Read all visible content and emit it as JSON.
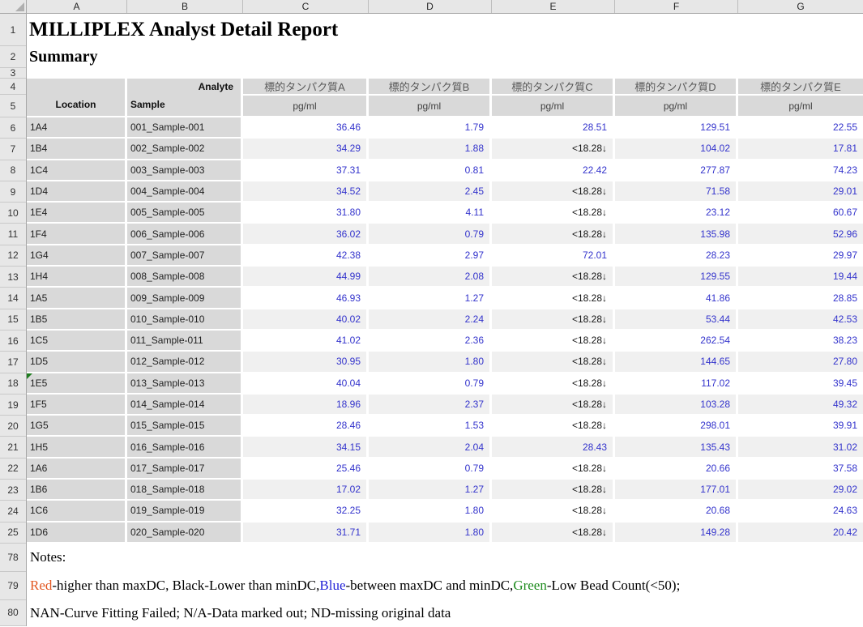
{
  "sheet": {
    "title": "MILLIPLEX Analyst Detail Report",
    "subtitle": "Summary",
    "column_letters": [
      "A",
      "B",
      "C",
      "D",
      "E",
      "F",
      "G"
    ],
    "row_numbers": [
      "1",
      "2",
      "3",
      "4",
      "5",
      "6",
      "7",
      "8",
      "9",
      "10",
      "11",
      "12",
      "13",
      "14",
      "15",
      "16",
      "17",
      "18",
      "19",
      "20",
      "21",
      "22",
      "23",
      "24",
      "25",
      "78",
      "79",
      "80"
    ],
    "header": {
      "analyte_label": "Analyte",
      "location_label": "Location",
      "sample_label": "Sample",
      "unit": "pg/ml",
      "analytes": [
        "標的タンパク質A",
        "標的タンパク質B",
        "標的タンパク質C",
        "標的タンパク質D",
        "標的タンパク質E"
      ]
    },
    "rows": [
      {
        "row": "6",
        "location": "1A4",
        "sample": "001_Sample-001",
        "values": [
          "36.46",
          "1.79",
          "28.51",
          "129.51",
          "22.55"
        ],
        "marker": false
      },
      {
        "row": "7",
        "location": "1B4",
        "sample": "002_Sample-002",
        "values": [
          "34.29",
          "1.88",
          "<18.28↓",
          "104.02",
          "17.81"
        ],
        "marker": false
      },
      {
        "row": "8",
        "location": "1C4",
        "sample": "003_Sample-003",
        "values": [
          "37.31",
          "0.81",
          "22.42",
          "277.87",
          "74.23"
        ],
        "marker": false
      },
      {
        "row": "9",
        "location": "1D4",
        "sample": "004_Sample-004",
        "values": [
          "34.52",
          "2.45",
          "<18.28↓",
          "71.58",
          "29.01"
        ],
        "marker": false
      },
      {
        "row": "10",
        "location": "1E4",
        "sample": "005_Sample-005",
        "values": [
          "31.80",
          "4.11",
          "<18.28↓",
          "23.12",
          "60.67"
        ],
        "marker": false
      },
      {
        "row": "11",
        "location": "1F4",
        "sample": "006_Sample-006",
        "values": [
          "36.02",
          "0.79",
          "<18.28↓",
          "135.98",
          "52.96"
        ],
        "marker": false
      },
      {
        "row": "12",
        "location": "1G4",
        "sample": "007_Sample-007",
        "values": [
          "42.38",
          "2.97",
          "72.01",
          "28.23",
          "29.97"
        ],
        "marker": false
      },
      {
        "row": "13",
        "location": "1H4",
        "sample": "008_Sample-008",
        "values": [
          "44.99",
          "2.08",
          "<18.28↓",
          "129.55",
          "19.44"
        ],
        "marker": false
      },
      {
        "row": "14",
        "location": "1A5",
        "sample": "009_Sample-009",
        "values": [
          "46.93",
          "1.27",
          "<18.28↓",
          "41.86",
          "28.85"
        ],
        "marker": false
      },
      {
        "row": "15",
        "location": "1B5",
        "sample": "010_Sample-010",
        "values": [
          "40.02",
          "2.24",
          "<18.28↓",
          "53.44",
          "42.53"
        ],
        "marker": false
      },
      {
        "row": "16",
        "location": "1C5",
        "sample": "011_Sample-011",
        "values": [
          "41.02",
          "2.36",
          "<18.28↓",
          "262.54",
          "38.23"
        ],
        "marker": false
      },
      {
        "row": "17",
        "location": "1D5",
        "sample": "012_Sample-012",
        "values": [
          "30.95",
          "1.80",
          "<18.28↓",
          "144.65",
          "27.80"
        ],
        "marker": false
      },
      {
        "row": "18",
        "location": "1E5",
        "sample": "013_Sample-013",
        "values": [
          "40.04",
          "0.79",
          "<18.28↓",
          "117.02",
          "39.45"
        ],
        "marker": true
      },
      {
        "row": "19",
        "location": "1F5",
        "sample": "014_Sample-014",
        "values": [
          "18.96",
          "2.37",
          "<18.28↓",
          "103.28",
          "49.32"
        ],
        "marker": false
      },
      {
        "row": "20",
        "location": "1G5",
        "sample": "015_Sample-015",
        "values": [
          "28.46",
          "1.53",
          "<18.28↓",
          "298.01",
          "39.91"
        ],
        "marker": false
      },
      {
        "row": "21",
        "location": "1H5",
        "sample": "016_Sample-016",
        "values": [
          "34.15",
          "2.04",
          "28.43",
          "135.43",
          "31.02"
        ],
        "marker": false
      },
      {
        "row": "22",
        "location": "1A6",
        "sample": "017_Sample-017",
        "values": [
          "25.46",
          "0.79",
          "<18.28↓",
          "20.66",
          "37.58"
        ],
        "marker": false
      },
      {
        "row": "23",
        "location": "1B6",
        "sample": "018_Sample-018",
        "values": [
          "17.02",
          "1.27",
          "<18.28↓",
          "177.01",
          "29.02"
        ],
        "marker": false
      },
      {
        "row": "24",
        "location": "1C6",
        "sample": "019_Sample-019",
        "values": [
          "32.25",
          "1.80",
          "<18.28↓",
          "20.68",
          "24.63"
        ],
        "marker": false
      },
      {
        "row": "25",
        "location": "1D6",
        "sample": "020_Sample-020",
        "values": [
          "31.71",
          "1.80",
          "<18.28↓",
          "149.28",
          "20.42"
        ],
        "marker": false
      }
    ],
    "notes": {
      "label": "Notes:",
      "line1_segments": [
        {
          "text": "Red",
          "color": "#E25822"
        },
        {
          "text": "-higher than maxDC, Black-Lower than minDC, ",
          "color": "#000000"
        },
        {
          "text": "Blue",
          "color": "#2323D7"
        },
        {
          "text": "-between maxDC and minDC, ",
          "color": "#000000"
        },
        {
          "text": "Green",
          "color": "#1E8B1E"
        },
        {
          "text": "-Low Bead Count(<50);",
          "color": "#000000"
        }
      ],
      "line2": "NAN-Curve Fitting Failed; N/A-Data marked out; ND-missing original data"
    },
    "colors": {
      "value_blue": "#3333CC",
      "below_min_black": "#141414",
      "header_gray": "#D9D9D9",
      "band_gray": "#F0F0F0",
      "legend_red": "#E25822",
      "legend_blue": "#2323D7",
      "legend_green": "#1E8B1E",
      "marker_green": "#1E7B1E"
    }
  }
}
